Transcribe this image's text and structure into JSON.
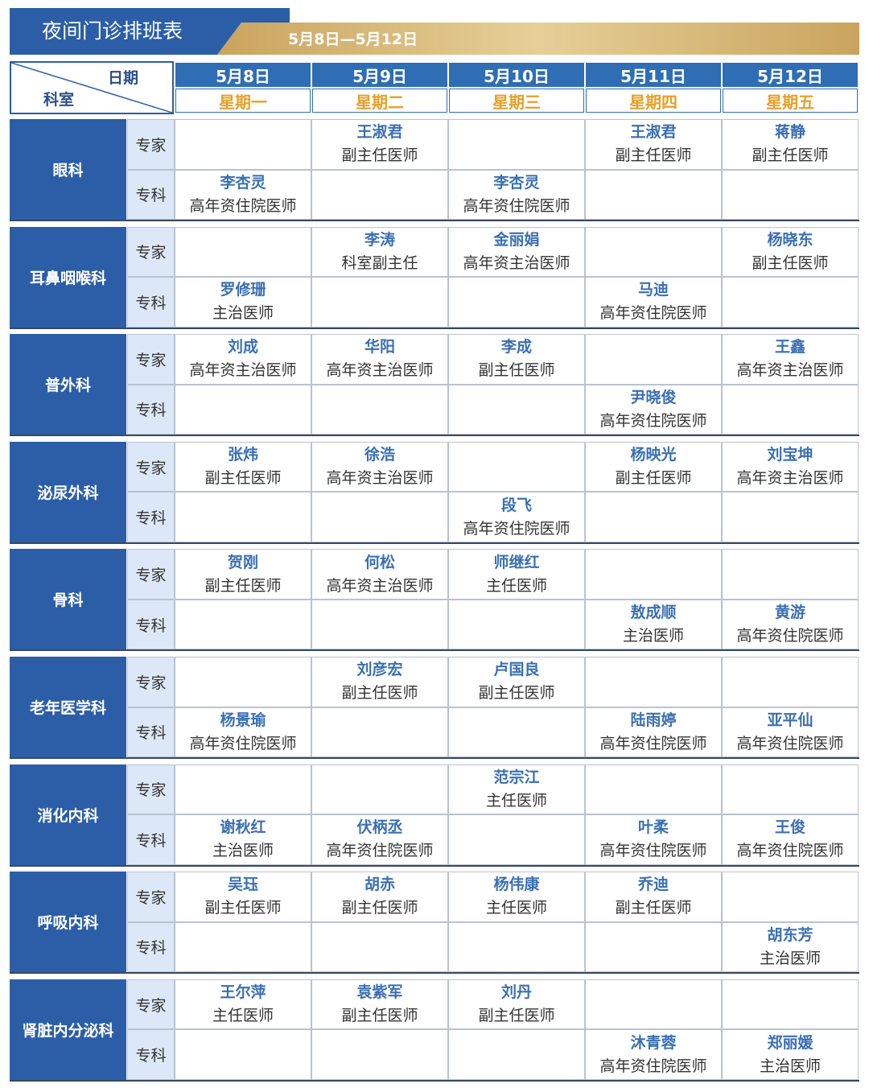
{
  "header": {
    "title": "夜间门诊排班表",
    "date_range": "5月8日—5月12日"
  },
  "table": {
    "corner": {
      "top": "日期",
      "bottom": "科室"
    },
    "columns": [
      {
        "date": "5月8日",
        "weekday": "星期一"
      },
      {
        "date": "5月9日",
        "weekday": "星期二"
      },
      {
        "date": "5月10日",
        "weekday": "星期三"
      },
      {
        "date": "5月11日",
        "weekday": "星期四"
      },
      {
        "date": "5月12日",
        "weekday": "星期五"
      }
    ],
    "departments": [
      {
        "name": "眼科",
        "rows": [
          {
            "type": "专家",
            "cells": [
              null,
              {
                "name": "王淑君",
                "title": "副主任医师"
              },
              null,
              {
                "name": "王淑君",
                "title": "副主任医师"
              },
              {
                "name": "蒋静",
                "title": "副主任医师"
              }
            ]
          },
          {
            "type": "专科",
            "cells": [
              {
                "name": "李杏灵",
                "title": "高年资住院医师"
              },
              null,
              {
                "name": "李杏灵",
                "title": "高年资住院医师"
              },
              null,
              null
            ]
          }
        ]
      },
      {
        "name": "耳鼻咽喉科",
        "rows": [
          {
            "type": "专家",
            "cells": [
              null,
              {
                "name": "李涛",
                "title": "科室副主任"
              },
              {
                "name": "金丽娟",
                "title": "高年资主治医师"
              },
              null,
              {
                "name": "杨晓东",
                "title": "副主任医师"
              }
            ]
          },
          {
            "type": "专科",
            "cells": [
              {
                "name": "罗修珊",
                "title": "主治医师"
              },
              null,
              null,
              {
                "name": "马迪",
                "title": "高年资住院医师"
              },
              null
            ]
          }
        ]
      },
      {
        "name": "普外科",
        "rows": [
          {
            "type": "专家",
            "cells": [
              {
                "name": "刘成",
                "title": "高年资主治医师"
              },
              {
                "name": "华阳",
                "title": "高年资主治医师"
              },
              {
                "name": "李成",
                "title": "副主任医师"
              },
              null,
              {
                "name": "王鑫",
                "title": "高年资主治医师"
              }
            ]
          },
          {
            "type": "专科",
            "cells": [
              null,
              null,
              null,
              {
                "name": "尹晓俊",
                "title": "高年资住院医师"
              },
              null
            ]
          }
        ]
      },
      {
        "name": "泌尿外科",
        "rows": [
          {
            "type": "专家",
            "cells": [
              {
                "name": "张炜",
                "title": "副主任医师"
              },
              {
                "name": "徐浩",
                "title": "高年资主治医师"
              },
              null,
              {
                "name": "杨映光",
                "title": "副主任医师"
              },
              {
                "name": "刘宝坤",
                "title": "高年资主治医师"
              }
            ]
          },
          {
            "type": "专科",
            "cells": [
              null,
              null,
              {
                "name": "段飞",
                "title": "高年资住院医师"
              },
              null,
              null
            ]
          }
        ]
      },
      {
        "name": "骨科",
        "rows": [
          {
            "type": "专家",
            "cells": [
              {
                "name": "贺刚",
                "title": "副主任医师"
              },
              {
                "name": "何松",
                "title": "高年资主治医师"
              },
              {
                "name": "师继红",
                "title": "主任医师"
              },
              null,
              null
            ]
          },
          {
            "type": "专科",
            "cells": [
              null,
              null,
              null,
              {
                "name": "敖成顺",
                "title": "主治医师"
              },
              {
                "name": "黄游",
                "title": "高年资住院医师"
              }
            ]
          }
        ]
      },
      {
        "name": "老年医学科",
        "rows": [
          {
            "type": "专家",
            "cells": [
              null,
              {
                "name": "刘彦宏",
                "title": "副主任医师"
              },
              {
                "name": "卢国良",
                "title": "副主任医师"
              },
              null,
              null
            ]
          },
          {
            "type": "专科",
            "cells": [
              {
                "name": "杨景瑜",
                "title": "高年资住院医师"
              },
              null,
              null,
              {
                "name": "陆雨婷",
                "title": "高年资住院医师"
              },
              {
                "name": "亚平仙",
                "title": "高年资住院医师"
              }
            ]
          }
        ]
      },
      {
        "name": "消化内科",
        "rows": [
          {
            "type": "专家",
            "cells": [
              null,
              null,
              {
                "name": "范宗江",
                "title": "主任医师"
              },
              null,
              null
            ]
          },
          {
            "type": "专科",
            "cells": [
              {
                "name": "谢秋红",
                "title": "主治医师"
              },
              {
                "name": "伏柄丞",
                "title": "高年资住院医师"
              },
              null,
              {
                "name": "叶柔",
                "title": "高年资住院医师"
              },
              {
                "name": "王俊",
                "title": "高年资住院医师"
              }
            ]
          }
        ]
      },
      {
        "name": "呼吸内科",
        "rows": [
          {
            "type": "专家",
            "cells": [
              {
                "name": "吴珏",
                "title": "副主任医师"
              },
              {
                "name": "胡赤",
                "title": "副主任医师"
              },
              {
                "name": "杨伟康",
                "title": "主任医师"
              },
              {
                "name": "乔迪",
                "title": "副主任医师"
              },
              null
            ]
          },
          {
            "type": "专科",
            "cells": [
              null,
              null,
              null,
              null,
              {
                "name": "胡东芳",
                "title": "主治医师"
              }
            ]
          }
        ]
      },
      {
        "name": "肾脏内分泌科",
        "rows": [
          {
            "type": "专家",
            "cells": [
              {
                "name": "王尔萍",
                "title": "主任医师"
              },
              {
                "name": "袁紫军",
                "title": "副主任医师"
              },
              {
                "name": "刘丹",
                "title": "副主任医师"
              },
              null,
              null
            ]
          },
          {
            "type": "专科",
            "cells": [
              null,
              null,
              null,
              {
                "name": "沐青蓉",
                "title": "高年资住院医师"
              },
              {
                "name": "郑丽媛",
                "title": "主治医师"
              }
            ]
          }
        ]
      }
    ]
  }
}
